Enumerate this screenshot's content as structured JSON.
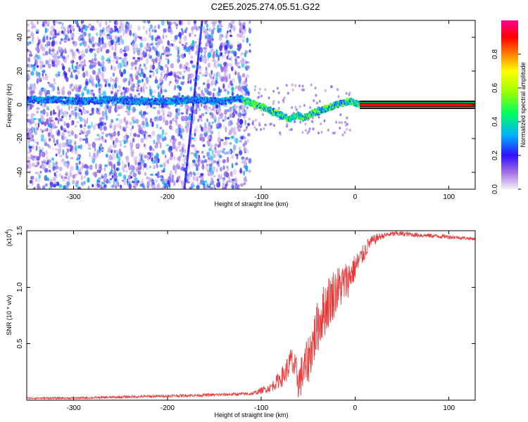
{
  "title": "C2E5.2025.274.05.51.G22",
  "chart_data": [
    {
      "type": "heatmap",
      "xlabel": "Height of straight line (km)",
      "ylabel": "Frequency (Hz)",
      "xlim": [
        -350,
        128
      ],
      "ylim": [
        -50,
        50
      ],
      "xticks": [
        -300,
        -200,
        -100,
        0,
        100
      ],
      "xtick_labels": [
        "-300",
        "-200",
        "-100",
        "0",
        "100"
      ],
      "yticks": [
        -40,
        -20,
        0,
        20,
        40
      ],
      "ytick_labels": [
        "-40",
        "-20",
        "0",
        "20",
        "40"
      ],
      "colorbar": {
        "label": "Normalized spectral amplitude",
        "range": [
          0,
          1
        ],
        "ticks": [
          0.0,
          0.2,
          0.4,
          0.6,
          0.8
        ],
        "tick_labels": [
          "0.0",
          "0.2",
          "0.4",
          "0.6",
          "0.8"
        ],
        "colors": [
          "#f4ecfb",
          "#8a2be2",
          "#0000ff",
          "#00c8ff",
          "#00ff00",
          "#ffff00",
          "#ff8000",
          "#ff0000",
          "#ff00aa"
        ]
      },
      "ridge": {
        "x": [
          -350,
          -320,
          -290,
          -260,
          -230,
          -200,
          -170,
          -140,
          -125,
          -110,
          -95,
          -80,
          -70,
          -62,
          -55,
          -45,
          -35,
          -25,
          -15,
          -5,
          5,
          30,
          60,
          90,
          128
        ],
        "y": [
          3,
          3,
          2,
          3,
          2,
          2,
          3,
          2,
          4,
          1,
          -2,
          -6,
          -9,
          -6,
          -8,
          -5,
          -3,
          -1,
          1,
          2,
          0,
          0,
          0,
          0,
          0
        ]
      },
      "noise_until_x": -120,
      "streaks": [
        {
          "x_start": -163,
          "y_start": 50,
          "x_end": -182,
          "y_end": -50
        }
      ]
    },
    {
      "type": "line",
      "xlabel": "Height of straight line (km)",
      "ylabel": "SNR (10 * v/v)",
      "multiplier": "(x10",
      "multiplier_exp": "4",
      "multiplier_close": ")",
      "xlim": [
        -350,
        128
      ],
      "ylim": [
        0,
        1.5
      ],
      "xticks": [
        -300,
        -200,
        -100,
        0,
        100
      ],
      "xtick_labels": [
        "-300",
        "-200",
        "-100",
        "0",
        "100"
      ],
      "yticks": [
        0.5,
        1.0,
        1.5
      ],
      "ytick_labels": [
        "0.5",
        "1.0",
        "1.5"
      ],
      "series": [
        {
          "name": "SNR",
          "color": "#ee3333",
          "envelope_x": [
            -350,
            -300,
            -250,
            -200,
            -150,
            -110,
            -90,
            -75,
            -68,
            -60,
            -52,
            -45,
            -38,
            -30,
            -22,
            -15,
            -8,
            0,
            8,
            15,
            25,
            35,
            45,
            60,
            80,
            100,
            128
          ],
          "envelope_y": [
            0.02,
            0.02,
            0.03,
            0.04,
            0.05,
            0.06,
            0.12,
            0.25,
            0.38,
            0.2,
            0.35,
            0.55,
            0.75,
            0.9,
            1.0,
            1.05,
            1.1,
            1.2,
            1.3,
            1.4,
            1.45,
            1.47,
            1.48,
            1.47,
            1.46,
            1.45,
            1.43
          ],
          "noise_amp_x": [
            -350,
            -110,
            -90,
            -70,
            -50,
            -30,
            -10,
            0,
            15,
            30,
            128
          ],
          "noise_amp_y": [
            0.008,
            0.015,
            0.04,
            0.12,
            0.22,
            0.25,
            0.18,
            0.12,
            0.06,
            0.025,
            0.015
          ]
        }
      ]
    }
  ]
}
